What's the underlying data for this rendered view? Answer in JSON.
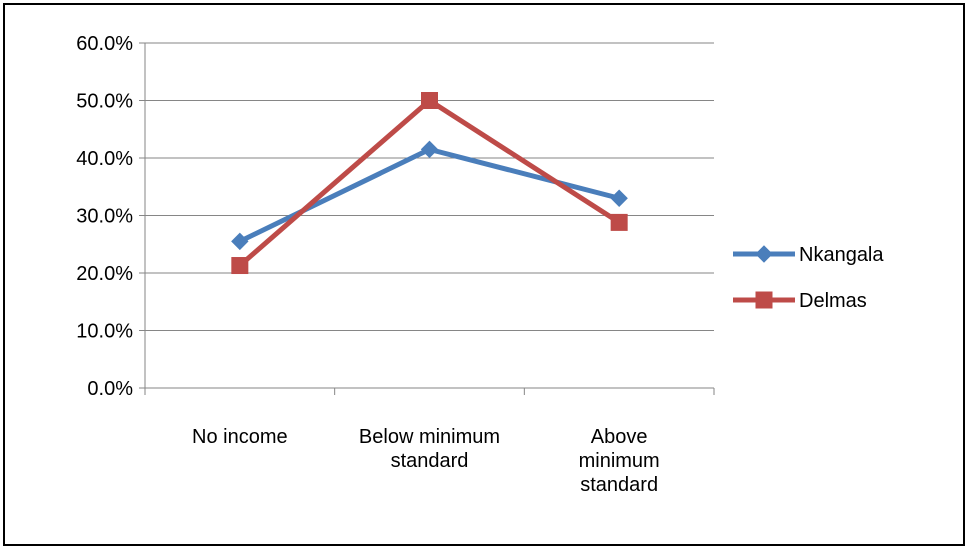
{
  "chart_data": {
    "type": "line",
    "title": "",
    "xlabel": "",
    "ylabel": "",
    "categories": [
      [
        "No income"
      ],
      [
        "Below minimum",
        "standard"
      ],
      [
        "Above",
        "minimum",
        "standard"
      ]
    ],
    "y_ticks": [
      "0.0%",
      "10.0%",
      "20.0%",
      "30.0%",
      "40.0%",
      "50.0%",
      "60.0%"
    ],
    "ylim": [
      0,
      60
    ],
    "grid": "horizontal",
    "legend_position": "right",
    "series": [
      {
        "name": "Nkangala",
        "values": [
          25.5,
          41.5,
          33.0
        ],
        "color": "#4A7EBB",
        "marker": "diamond"
      },
      {
        "name": "Delmas",
        "values": [
          21.3,
          50.0,
          28.8
        ],
        "color": "#BE4B48",
        "marker": "square"
      }
    ]
  }
}
